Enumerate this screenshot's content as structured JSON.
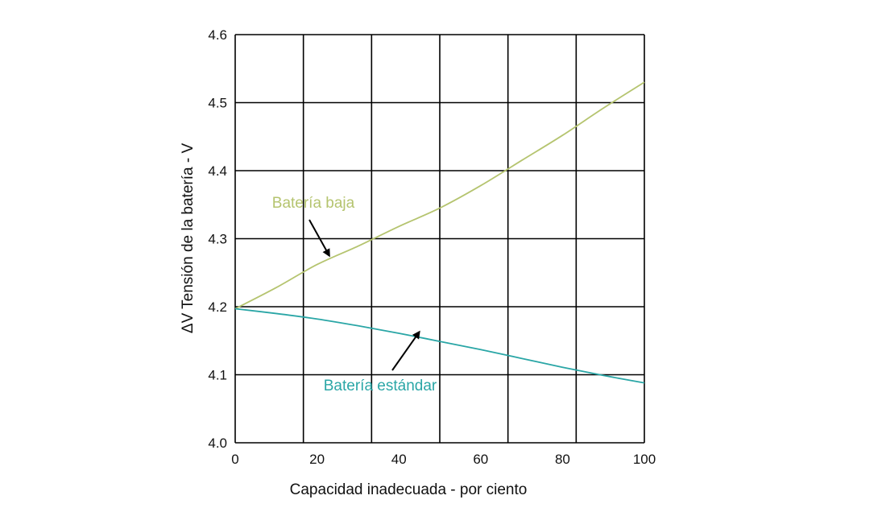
{
  "chart_data": {
    "type": "line",
    "xlabel": "Capacidad inadecuada - por ciento",
    "ylabel": "ΔV  Tensión de la batería - V",
    "xlim": [
      0,
      100
    ],
    "ylim": [
      4.0,
      4.6
    ],
    "x_ticks": [
      "0",
      "20",
      "40",
      "60",
      "80",
      "100"
    ],
    "y_ticks": [
      "4.0",
      "4.1",
      "4.2",
      "4.3",
      "4.4",
      "4.5",
      "4.6"
    ],
    "grid": true,
    "series": [
      {
        "name": "Batería baja",
        "color": "#b5c46f",
        "x": [
          0,
          10,
          20,
          30,
          40,
          50,
          60,
          70,
          80,
          90,
          100
        ],
        "y": [
          4.197,
          4.228,
          4.262,
          4.289,
          4.318,
          4.345,
          4.378,
          4.415,
          4.452,
          4.492,
          4.53
        ]
      },
      {
        "name": "Batería estándar",
        "color": "#2aa6a6",
        "x": [
          0,
          10,
          20,
          30,
          40,
          50,
          60,
          70,
          80,
          90,
          100
        ],
        "y": [
          4.197,
          4.19,
          4.182,
          4.172,
          4.161,
          4.149,
          4.137,
          4.124,
          4.111,
          4.099,
          4.088
        ]
      }
    ],
    "annotations": [
      {
        "text": "Batería baja",
        "color": "#b5c46f",
        "arrow_to": [
          23,
          4.275
        ]
      },
      {
        "text": "Batería estándar",
        "color": "#2aa6a6",
        "arrow_to": [
          45,
          4.163
        ]
      }
    ]
  }
}
